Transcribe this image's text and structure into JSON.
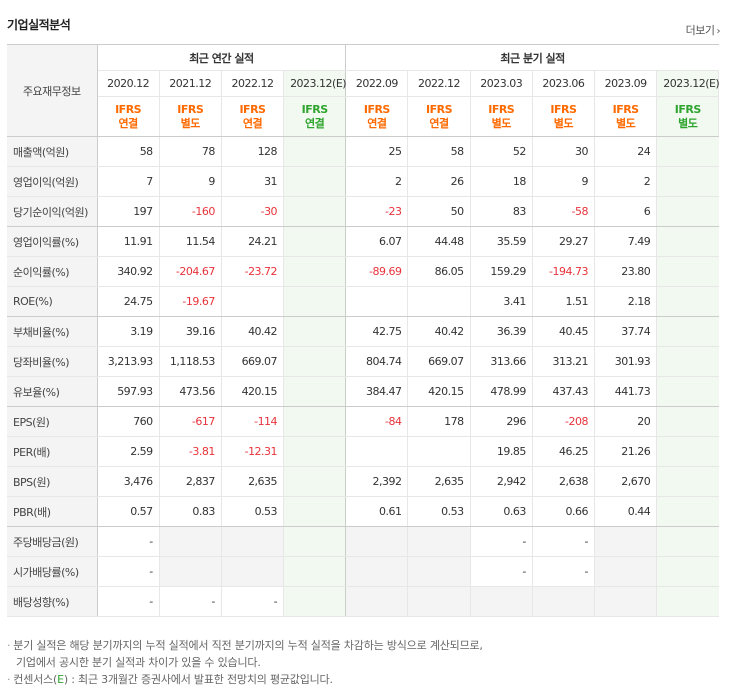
{
  "section_title": "기업실적분석",
  "more_link": "더보기",
  "corner_label": "주요재무정보",
  "groups": {
    "annual": "최근 연간 실적",
    "quarter": "최근 분기 실적"
  },
  "periods": [
    {
      "label": "2020.12",
      "std1": "IFRS",
      "std2": "연결",
      "est": false
    },
    {
      "label": "2021.12",
      "std1": "IFRS",
      "std2": "별도",
      "est": false
    },
    {
      "label": "2022.12",
      "std1": "IFRS",
      "std2": "연결",
      "est": false
    },
    {
      "label": "2023.12(E)",
      "std1": "IFRS",
      "std2": "연결",
      "est": true
    },
    {
      "label": "2022.09",
      "std1": "IFRS",
      "std2": "연결",
      "est": false
    },
    {
      "label": "2022.12",
      "std1": "IFRS",
      "std2": "연결",
      "est": false
    },
    {
      "label": "2023.03",
      "std1": "IFRS",
      "std2": "별도",
      "est": false
    },
    {
      "label": "2023.06",
      "std1": "IFRS",
      "std2": "별도",
      "est": false
    },
    {
      "label": "2023.09",
      "std1": "IFRS",
      "std2": "별도",
      "est": false
    },
    {
      "label": "2023.12(E)",
      "std1": "IFRS",
      "std2": "별도",
      "est": true
    }
  ],
  "rows": [
    {
      "label": "매출액(억원)",
      "values": [
        "58",
        "78",
        "128",
        "",
        "25",
        "58",
        "52",
        "30",
        "24",
        ""
      ]
    },
    {
      "label": "영업이익(억원)",
      "values": [
        "7",
        "9",
        "31",
        "",
        "2",
        "26",
        "18",
        "9",
        "2",
        ""
      ]
    },
    {
      "label": "당기순이익(억원)",
      "values": [
        "197",
        "-160",
        "-30",
        "",
        "-23",
        "50",
        "83",
        "-58",
        "6",
        ""
      ]
    },
    {
      "label": "영업이익률(%)",
      "values": [
        "11.91",
        "11.54",
        "24.21",
        "",
        "6.07",
        "44.48",
        "35.59",
        "29.27",
        "7.49",
        ""
      ]
    },
    {
      "label": "순이익률(%)",
      "values": [
        "340.92",
        "-204.67",
        "-23.72",
        "",
        "-89.69",
        "86.05",
        "159.29",
        "-194.73",
        "23.80",
        ""
      ]
    },
    {
      "label": "ROE(%)",
      "values": [
        "24.75",
        "-19.67",
        "",
        "",
        "",
        "",
        "3.41",
        "1.51",
        "2.18",
        ""
      ]
    },
    {
      "label": "부채비율(%)",
      "values": [
        "3.19",
        "39.16",
        "40.42",
        "",
        "42.75",
        "40.42",
        "36.39",
        "40.45",
        "37.74",
        ""
      ]
    },
    {
      "label": "당좌비율(%)",
      "values": [
        "3,213.93",
        "1,118.53",
        "669.07",
        "",
        "804.74",
        "669.07",
        "313.66",
        "313.21",
        "301.93",
        ""
      ]
    },
    {
      "label": "유보율(%)",
      "values": [
        "597.93",
        "473.56",
        "420.15",
        "",
        "384.47",
        "420.15",
        "478.99",
        "437.43",
        "441.73",
        ""
      ]
    },
    {
      "label": "EPS(원)",
      "values": [
        "760",
        "-617",
        "-114",
        "",
        "-84",
        "178",
        "296",
        "-208",
        "20",
        ""
      ]
    },
    {
      "label": "PER(배)",
      "values": [
        "2.59",
        "-3.81",
        "-12.31",
        "",
        "",
        "",
        "19.85",
        "46.25",
        "21.26",
        ""
      ]
    },
    {
      "label": "BPS(원)",
      "values": [
        "3,476",
        "2,837",
        "2,635",
        "",
        "2,392",
        "2,635",
        "2,942",
        "2,638",
        "2,670",
        ""
      ]
    },
    {
      "label": "PBR(배)",
      "values": [
        "0.57",
        "0.83",
        "0.53",
        "",
        "0.61",
        "0.53",
        "0.63",
        "0.66",
        "0.44",
        ""
      ]
    },
    {
      "label": "주당배당금(원)",
      "values": [
        "-",
        "",
        "",
        "",
        "",
        "",
        "-",
        "-",
        "",
        ""
      ]
    },
    {
      "label": "시가배당률(%)",
      "values": [
        "-",
        "",
        "",
        "",
        "",
        "",
        "-",
        "-",
        "",
        ""
      ]
    },
    {
      "label": "배당성향(%)",
      "values": [
        "-",
        "-",
        "-",
        "",
        "",
        "",
        "",
        "",
        "",
        ""
      ]
    }
  ],
  "notes": {
    "line1": "분기 실적은 해당 분기까지의 누적 실적에서 직전 분기까지의 누적 실적을 차감하는 방식으로 계산되므로,",
    "line2": "기업에서 공시한 분기 실적과 차이가 있을 수 있습니다.",
    "line3_prefix": "컨센서스(",
    "line3_e": "E",
    "line3_suffix": ") : 최근 3개월간 증권사에서 발표한 전망치의 평균값입니다."
  },
  "colors": {
    "ifrs": "#ff6a00",
    "estimate": "#2fa52f",
    "negative": "#e8333b"
  }
}
